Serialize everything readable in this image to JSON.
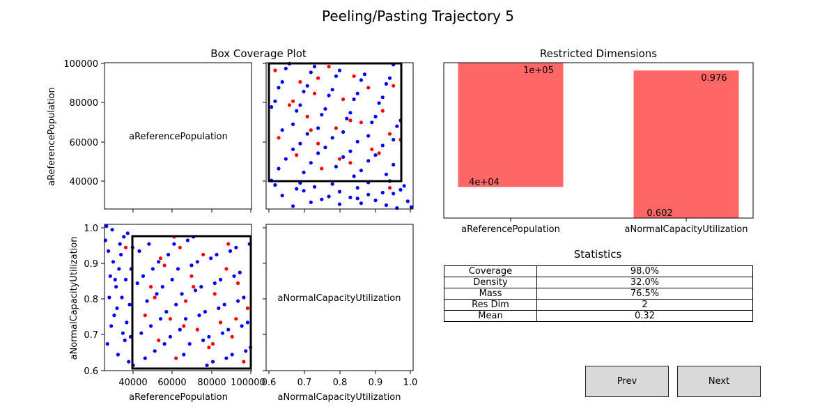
{
  "figure": {
    "title": "Peeling/Pasting Trajectory 5"
  },
  "scatter_panel": {
    "title": "Box Coverage Plot",
    "diag_labels": [
      "aReferencePopulation",
      "aNormalCapacityUtilization"
    ],
    "x_labels": [
      "aReferencePopulation",
      "aNormalCapacityUtilization"
    ],
    "y_labels": [
      "aReferencePopulation",
      "aNormalCapacityUtilization"
    ],
    "pop_ticks": [
      "40000",
      "60000",
      "80000",
      "100000"
    ],
    "util_y_ticks": [
      "0.6",
      "0.7",
      "0.8",
      "0.9",
      "1.0"
    ],
    "util_x_ticks": [
      "0.6",
      "0.7",
      "0.8",
      "0.9",
      "1.0"
    ]
  },
  "bar_panel": {
    "title": "Restricted Dimensions",
    "categories": [
      "aReferencePopulation",
      "aNormalCapacityUtilization"
    ],
    "low_labels": [
      "4e+04",
      "0.602"
    ],
    "high_labels": [
      "1e+05",
      "0.976"
    ]
  },
  "statistics": {
    "title": "Statistics",
    "rows": [
      {
        "label": "Coverage",
        "value": "98.0%"
      },
      {
        "label": "Density",
        "value": "32.0%"
      },
      {
        "label": "Mass",
        "value": "76.5%"
      },
      {
        "label": "Res Dim",
        "value": "2"
      },
      {
        "label": "Mean",
        "value": "0.32"
      }
    ]
  },
  "buttons": {
    "prev": "Prev",
    "next": "Next"
  },
  "colors": {
    "class0": "#0000ff",
    "class1": "#ff0000",
    "bar": "#ff6666",
    "box": "#000000"
  },
  "chart_data": [
    {
      "type": "scatter",
      "title": "Box Coverage Plot",
      "xlabel": "aReferencePopulation",
      "ylabel": "aNormalCapacityUtilization",
      "xlim": [
        24000,
        100000
      ],
      "ylim": [
        0.595,
        1.005
      ],
      "box": {
        "x": [
          40000,
          100000
        ],
        "y": [
          0.602,
          0.976
        ]
      },
      "series": [
        {
          "color": "#0000ff",
          "points": [
            [
              24500,
              0.96
            ],
            [
              26000,
              0.93
            ],
            [
              27500,
              0.72
            ],
            [
              28500,
              0.9
            ],
            [
              30000,
              0.83
            ],
            [
              31500,
              0.88
            ],
            [
              33000,
              0.8
            ],
            [
              34000,
              0.97
            ],
            [
              35500,
              0.73
            ],
            [
              36500,
              0.62
            ],
            [
              37500,
              0.69
            ],
            [
              38500,
              0.94
            ],
            [
              26500,
              0.8
            ],
            [
              29000,
              0.75
            ],
            [
              32500,
              0.92
            ],
            [
              35000,
              0.85
            ],
            [
              37000,
              0.78
            ],
            [
              25500,
              0.67
            ],
            [
              28000,
              0.99
            ],
            [
              31000,
              0.64
            ],
            [
              33500,
              0.7
            ],
            [
              36000,
              0.98
            ],
            [
              38800,
              0.61
            ],
            [
              27000,
              0.86
            ],
            [
              30500,
              0.77
            ],
            [
              34500,
              0.68
            ],
            [
              37800,
              0.88
            ],
            [
              25000,
              1.0
            ],
            [
              32000,
              0.95
            ],
            [
              29500,
              0.85
            ],
            [
              42000,
              0.93
            ],
            [
              44000,
              0.86
            ],
            [
              46000,
              0.79
            ],
            [
              48000,
              0.72
            ],
            [
              50000,
              0.65
            ],
            [
              52000,
              0.9
            ],
            [
              54000,
              0.83
            ],
            [
              56000,
              0.76
            ],
            [
              58000,
              0.69
            ],
            [
              60000,
              0.95
            ],
            [
              62000,
              0.88
            ],
            [
              64000,
              0.81
            ],
            [
              66000,
              0.74
            ],
            [
              68000,
              0.67
            ],
            [
              70000,
              0.97
            ],
            [
              72000,
              0.9
            ],
            [
              74000,
              0.83
            ],
            [
              76000,
              0.76
            ],
            [
              78000,
              0.69
            ],
            [
              80000,
              0.62
            ],
            [
              82000,
              0.92
            ],
            [
              84000,
              0.85
            ],
            [
              86000,
              0.78
            ],
            [
              88000,
              0.71
            ],
            [
              90000,
              0.64
            ],
            [
              92000,
              0.94
            ],
            [
              94000,
              0.87
            ],
            [
              96000,
              0.8
            ],
            [
              98000,
              0.73
            ],
            [
              99500,
              0.66
            ],
            [
              43000,
              0.7
            ],
            [
              45000,
              0.63
            ],
            [
              47000,
              0.95
            ],
            [
              49000,
              0.88
            ],
            [
              51000,
              0.81
            ],
            [
              53000,
              0.74
            ],
            [
              55000,
              0.67
            ],
            [
              57000,
              0.92
            ],
            [
              59000,
              0.85
            ],
            [
              61000,
              0.78
            ],
            [
              63000,
              0.71
            ],
            [
              65000,
              0.64
            ],
            [
              67000,
              0.96
            ],
            [
              69000,
              0.89
            ],
            [
              71000,
              0.82
            ],
            [
              73000,
              0.75
            ],
            [
              75000,
              0.68
            ],
            [
              77000,
              0.61
            ],
            [
              79000,
              0.91
            ],
            [
              81000,
              0.84
            ],
            [
              83000,
              0.77
            ],
            [
              85000,
              0.7
            ],
            [
              87000,
              0.63
            ],
            [
              89000,
              0.93
            ],
            [
              91000,
              0.86
            ],
            [
              93000,
              0.79
            ],
            [
              95000,
              0.72
            ],
            [
              97000,
              0.65
            ],
            [
              41000,
              0.84
            ],
            [
              99000,
              0.95
            ]
          ]
        },
        {
          "color": "#ff0000",
          "points": [
            [
              45000,
              0.75
            ],
            [
              48000,
              0.83
            ],
            [
              52000,
              0.68
            ],
            [
              55000,
              0.89
            ],
            [
              58000,
              0.74
            ],
            [
              61000,
              0.63
            ],
            [
              63000,
              0.94
            ],
            [
              66000,
              0.79
            ],
            [
              69000,
              0.86
            ],
            [
              72000,
              0.71
            ],
            [
              75000,
              0.92
            ],
            [
              78000,
              0.66
            ],
            [
              81000,
              0.81
            ],
            [
              84000,
              0.73
            ],
            [
              87000,
              0.88
            ],
            [
              90000,
              0.69
            ],
            [
              93000,
              0.84
            ],
            [
              96000,
              0.62
            ],
            [
              98000,
              0.77
            ],
            [
              35000,
              0.94
            ],
            [
              50000,
              0.8
            ],
            [
              60000,
              0.97
            ],
            [
              70000,
              0.83
            ],
            [
              80000,
              0.67
            ],
            [
              88000,
              0.95
            ],
            [
              92000,
              0.74
            ],
            [
              65000,
              0.72
            ],
            [
              53000,
              0.91
            ]
          ]
        }
      ]
    },
    {
      "type": "bar",
      "title": "Restricted Dimensions",
      "categories": [
        "aReferencePopulation",
        "aNormalCapacityUtilization"
      ],
      "low_normalized": [
        0.2,
        0.0
      ],
      "high_normalized": [
        1.0,
        0.95
      ],
      "low_labels": [
        "4e+04",
        "0.602"
      ],
      "high_labels": [
        "1e+05",
        "0.976"
      ]
    }
  ]
}
